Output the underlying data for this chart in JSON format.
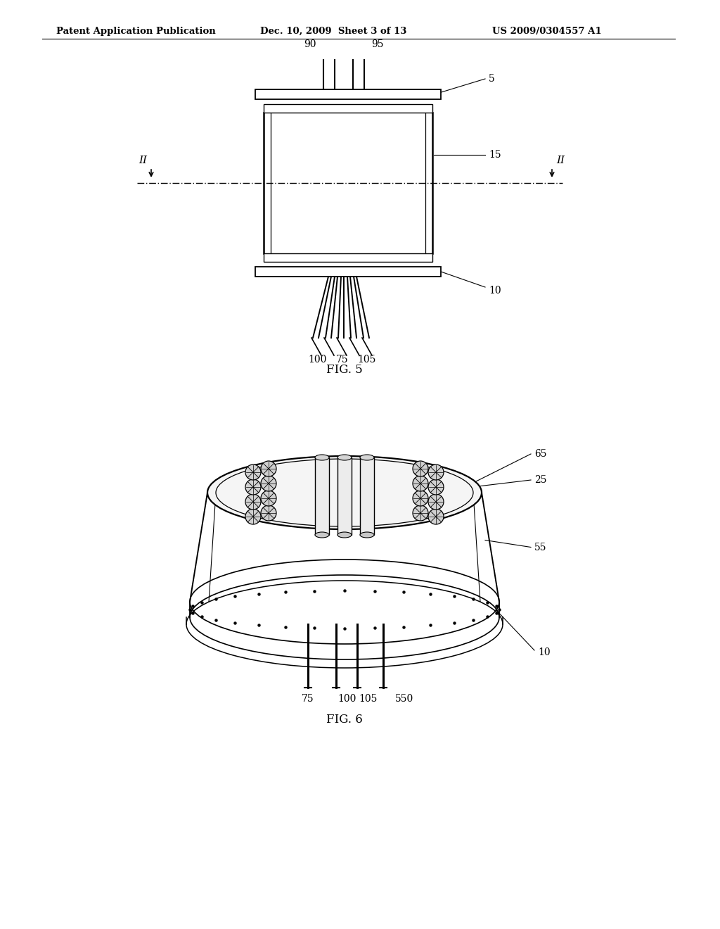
{
  "background_color": "#ffffff",
  "header_left": "Patent Application Publication",
  "header_mid": "Dec. 10, 2009  Sheet 3 of 13",
  "header_right": "US 2009/0304557 A1",
  "fig5_label": "FIG. 5",
  "fig6_label": "FIG. 6",
  "line_color": "#000000",
  "text_color": "#000000"
}
